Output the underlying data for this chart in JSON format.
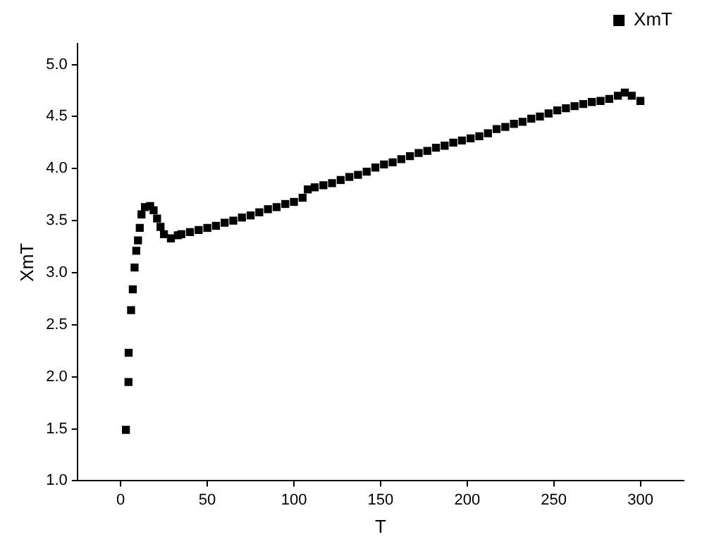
{
  "chart_data": {
    "type": "scatter",
    "xlabel": "T",
    "ylabel": "XmT",
    "xlim": [
      -25,
      325
    ],
    "xticks": [
      0,
      50,
      100,
      150,
      200,
      250,
      300
    ],
    "ylim": [
      1,
      5.2
    ],
    "yticks": [
      {
        "value": 1,
        "label": "1.0"
      },
      1.5,
      {
        "value": 2,
        "label": "2.0"
      },
      2.5,
      {
        "value": 3,
        "label": "3.0"
      },
      3.5,
      {
        "value": 4,
        "label": "4.0"
      },
      4.5,
      {
        "value": 5,
        "label": "5.0"
      }
    ],
    "grid": false,
    "legend": "top right",
    "marker": "square",
    "series": [
      {
        "name": "XmT",
        "color": "#000000",
        "x": [
          3,
          4.5,
          4.6,
          6,
          7,
          8,
          9,
          10,
          11,
          12,
          14,
          17,
          19,
          21,
          23,
          25,
          29,
          33,
          35,
          40,
          45,
          50,
          55,
          60,
          65,
          70,
          75,
          80,
          85,
          90,
          95,
          100,
          105,
          108,
          112,
          117,
          122,
          127,
          132,
          137,
          142,
          147,
          152,
          157,
          162,
          167,
          172,
          177,
          182,
          187,
          192,
          197,
          202,
          207,
          212,
          217,
          222,
          227,
          232,
          237,
          242,
          247,
          252,
          257,
          262,
          267,
          272,
          277,
          282,
          287,
          291,
          295,
          300
        ],
        "values": [
          1.49,
          1.95,
          2.23,
          2.64,
          2.84,
          3.05,
          3.21,
          3.31,
          3.43,
          3.56,
          3.63,
          3.64,
          3.6,
          3.52,
          3.44,
          3.37,
          3.33,
          3.36,
          3.37,
          3.39,
          3.41,
          3.43,
          3.45,
          3.48,
          3.5,
          3.53,
          3.55,
          3.58,
          3.61,
          3.63,
          3.66,
          3.68,
          3.72,
          3.8,
          3.82,
          3.84,
          3.86,
          3.89,
          3.92,
          3.94,
          3.97,
          4.01,
          4.04,
          4.06,
          4.09,
          4.12,
          4.15,
          4.17,
          4.2,
          4.22,
          4.25,
          4.27,
          4.29,
          4.31,
          4.34,
          4.38,
          4.4,
          4.43,
          4.45,
          4.48,
          4.5,
          4.53,
          4.56,
          4.58,
          4.6,
          4.62,
          4.64,
          4.65,
          4.67,
          4.7,
          4.73,
          4.7,
          4.65
        ]
      }
    ]
  }
}
